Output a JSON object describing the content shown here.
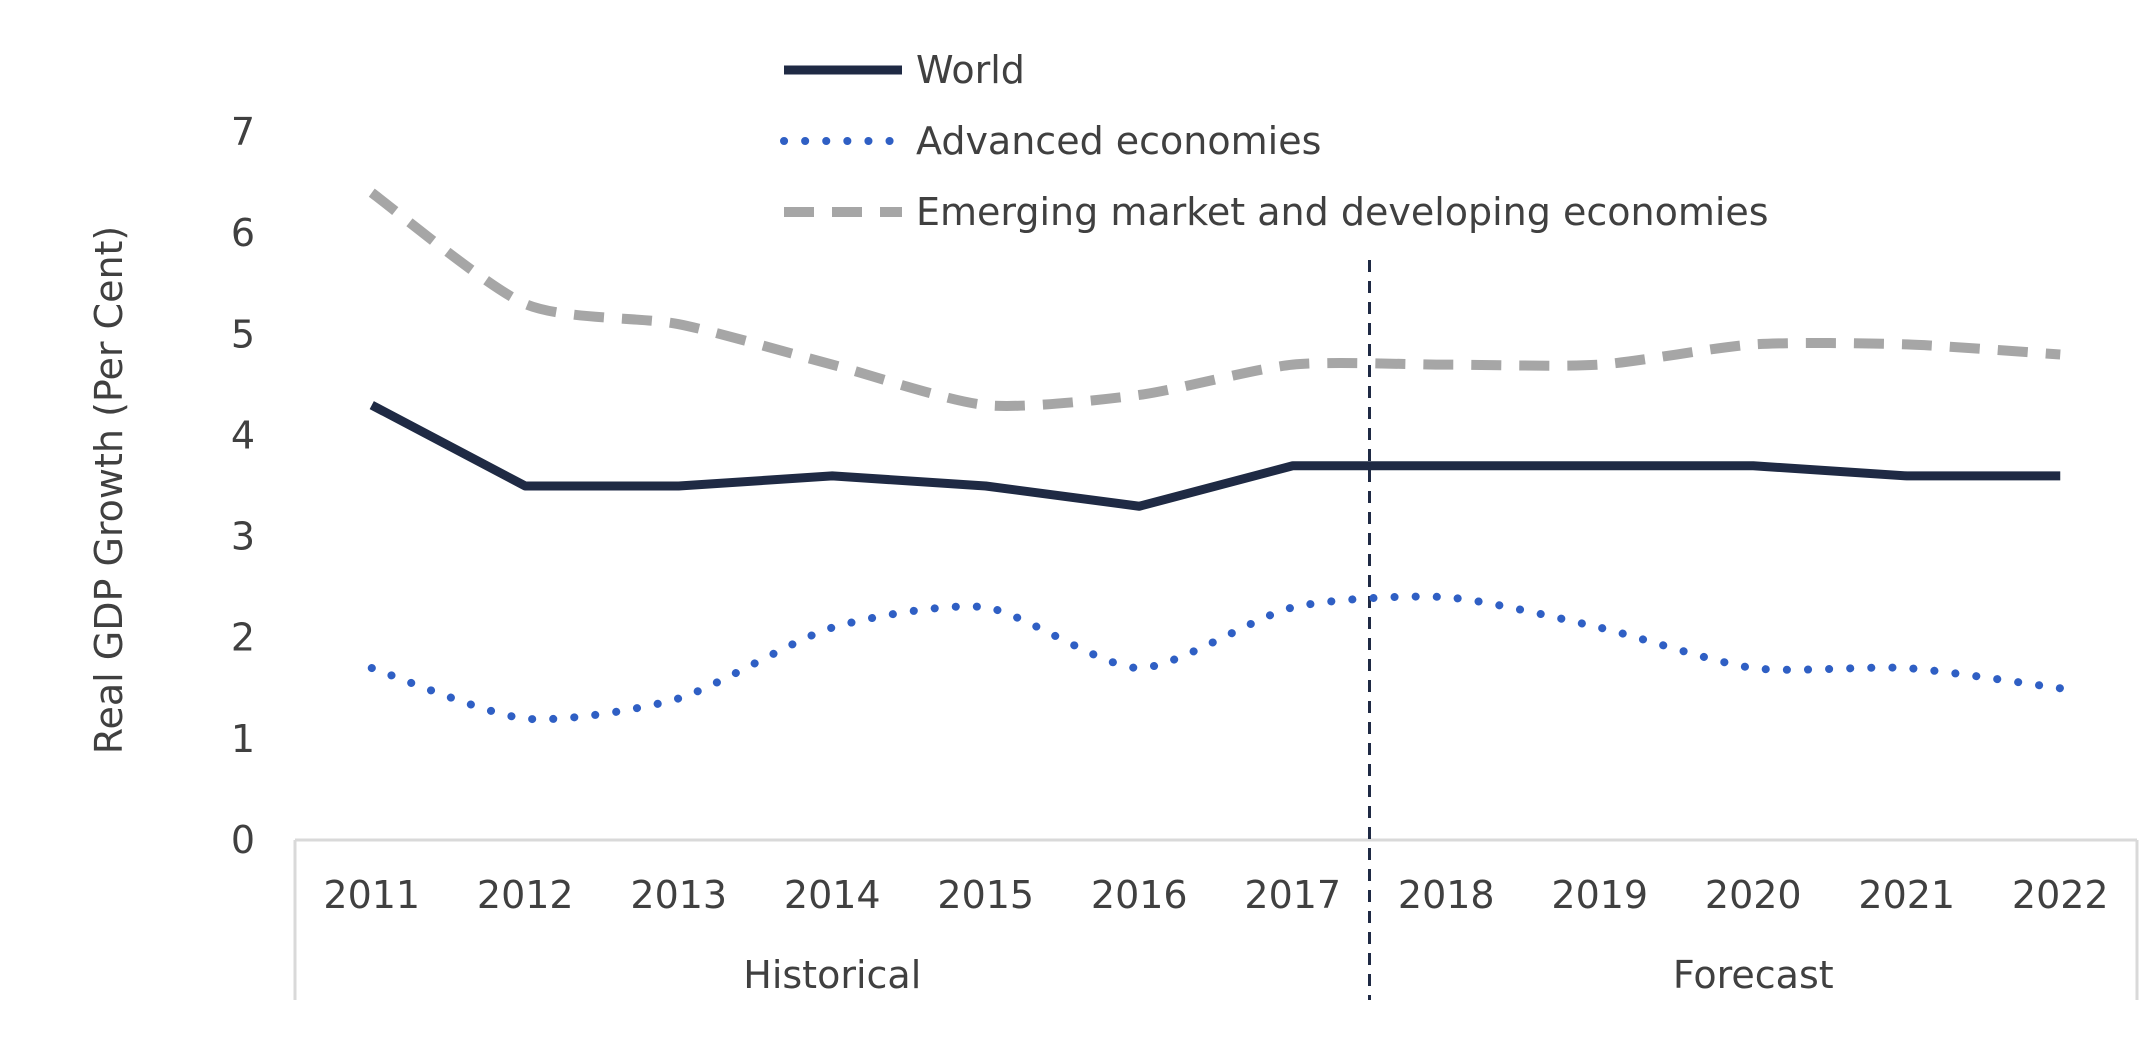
{
  "chart_data": {
    "type": "line",
    "ylabel": "Real GDP Growth (Per Cent)",
    "ylim": [
      0,
      7
    ],
    "yticks": [
      0,
      1,
      2,
      3,
      4,
      5,
      6,
      7
    ],
    "grid": false,
    "legend_position": "top",
    "categories": [
      "2011",
      "2012",
      "2013",
      "2014",
      "2015",
      "2016",
      "2017",
      "2018",
      "2019",
      "2020",
      "2021",
      "2022"
    ],
    "groups": [
      {
        "label": "Historical",
        "from": "2011",
        "to": "2017"
      },
      {
        "label": "Forecast",
        "from": "2018",
        "to": "2022"
      }
    ],
    "divider_between": [
      "2017",
      "2018"
    ],
    "series": [
      {
        "name": "World",
        "style": "solid",
        "color": "#1f2a44",
        "values": [
          4.3,
          3.5,
          3.5,
          3.6,
          3.5,
          3.3,
          3.7,
          3.7,
          3.7,
          3.7,
          3.6,
          3.6
        ]
      },
      {
        "name": "Advanced economies",
        "style": "dotted",
        "color": "#2f5fc4",
        "values": [
          1.7,
          1.2,
          1.4,
          2.1,
          2.3,
          1.7,
          2.3,
          2.4,
          2.1,
          1.7,
          1.7,
          1.5
        ]
      },
      {
        "name": "Emerging market and developing economies",
        "style": "dashed",
        "color": "#a6a6a6",
        "values": [
          6.4,
          5.3,
          5.1,
          4.7,
          4.3,
          4.4,
          4.7,
          4.7,
          4.7,
          4.9,
          4.9,
          4.8
        ]
      }
    ]
  }
}
